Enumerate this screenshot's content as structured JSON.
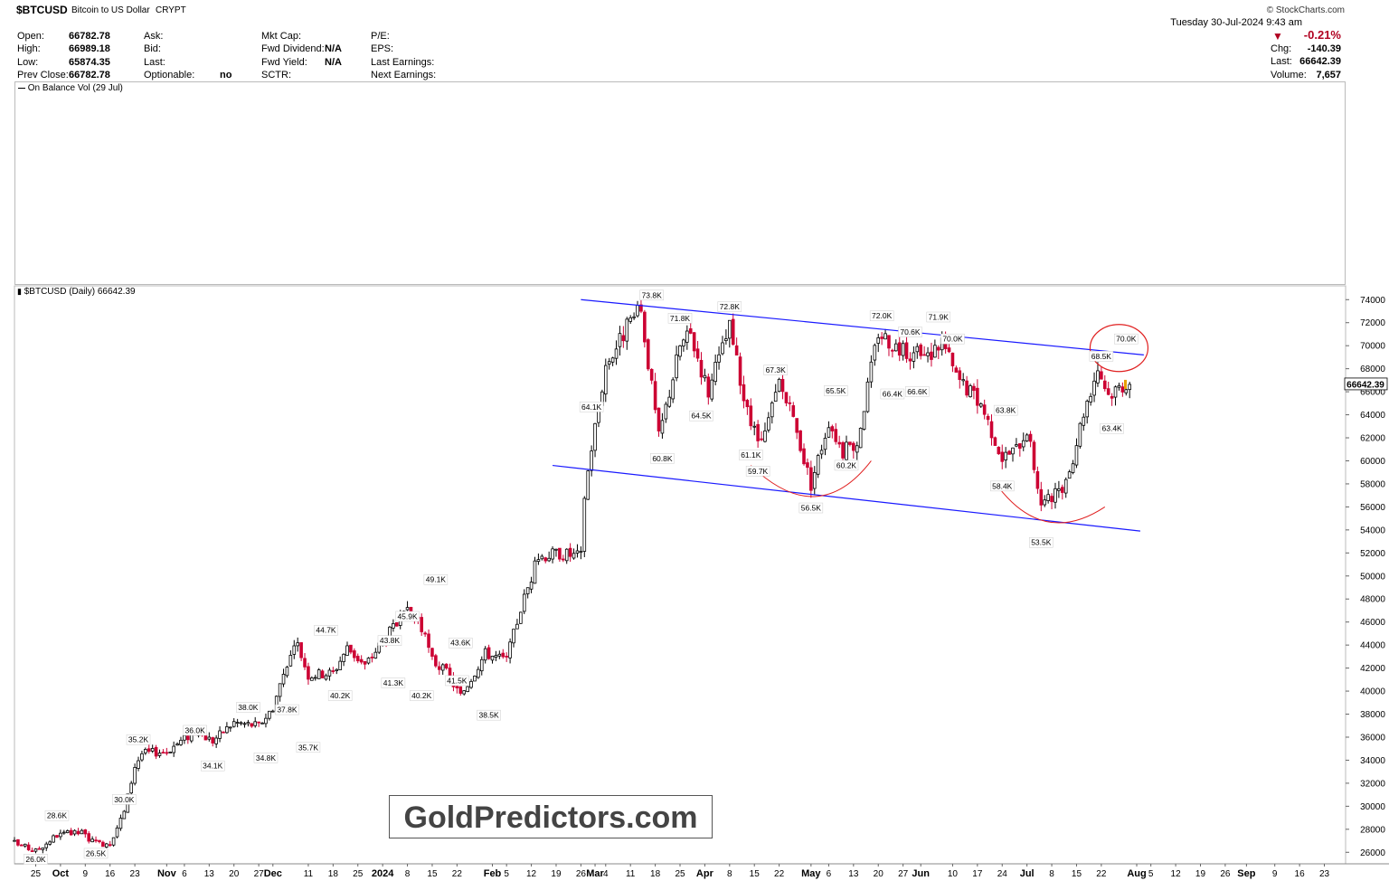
{
  "header": {
    "symbol": "$BTCUSD",
    "name": "Bitcoin to US Dollar",
    "exchange": "CRYPT",
    "source": "© StockCharts.com",
    "date": "Tuesday  30-Jul-2024  9:43 am",
    "pct_change": "-0.21%",
    "stats_left": [
      {
        "label": "Open:",
        "value": "66782.78"
      },
      {
        "label": "High:",
        "value": "66989.18"
      },
      {
        "label": "Low:",
        "value": "65874.35"
      },
      {
        "label": "Prev Close:",
        "value": "66782.78"
      }
    ],
    "stats_col2": [
      {
        "label": "Ask:",
        "value": ""
      },
      {
        "label": "Bid:",
        "value": ""
      },
      {
        "label": "Last:",
        "value": ""
      },
      {
        "label": "Optionable:",
        "value": "no"
      }
    ],
    "stats_col3": [
      {
        "label": "Mkt Cap:",
        "value": ""
      },
      {
        "label": "Fwd Dividend:",
        "value": "N/A"
      },
      {
        "label": "Fwd Yield:",
        "value": "N/A"
      },
      {
        "label": "SCTR:",
        "value": ""
      }
    ],
    "stats_col4": [
      {
        "label": "P/E:"
      },
      {
        "label": "EPS:"
      },
      {
        "label": "Last Earnings:"
      },
      {
        "label": "Next Earnings:"
      }
    ],
    "stats_right": [
      {
        "label": "Chg:",
        "value": "-140.39"
      },
      {
        "label": "Last:",
        "value": "66642.39"
      },
      {
        "label": "Volume:",
        "value": "7,657"
      }
    ]
  },
  "indicator_panel": {
    "label": "On Balance Vol (29 Jul)"
  },
  "price_panel": {
    "label": "$BTCUSD (Daily) 66642.39",
    "last_price_tag": "66642.39"
  },
  "watermark": "GoldPredictors.com",
  "colors": {
    "up": "#000000",
    "down": "#cc0033",
    "channel": "#1a1aff",
    "annotation": "#e02020",
    "last_tag": "#e8a000"
  },
  "chart_data": {
    "type": "candlestick",
    "title": "$BTCUSD (Daily) 66642.39",
    "y_axis": {
      "ticks": [
        26000,
        28000,
        30000,
        32000,
        34000,
        36000,
        38000,
        40000,
        42000,
        44000,
        46000,
        48000,
        50000,
        52000,
        54000,
        56000,
        58000,
        60000,
        62000,
        64000,
        66000,
        68000,
        70000,
        72000,
        74000
      ],
      "tick_labels": [
        "26000",
        "28000",
        "30000",
        "32000",
        "34000",
        "36000",
        "38000",
        "40000",
        "42000",
        "44000",
        "46000",
        "48000",
        "50000",
        "52000",
        "54000",
        "56000",
        "58000",
        "60000",
        "62000",
        "64000",
        "66000",
        "68000",
        "70000",
        "72000",
        "74000"
      ],
      "range": [
        25000,
        75200
      ]
    },
    "x_axis": {
      "range": [
        "2023-09-19",
        "2024-09-29"
      ],
      "ticks": [
        {
          "date": "2023-09-25",
          "label": "25"
        },
        {
          "date": "2023-10-02",
          "label": "Oct"
        },
        {
          "date": "2023-10-09",
          "label": "9"
        },
        {
          "date": "2023-10-16",
          "label": "16"
        },
        {
          "date": "2023-10-23",
          "label": "23"
        },
        {
          "date": "2023-11-01",
          "label": "Nov"
        },
        {
          "date": "2023-11-06",
          "label": "6"
        },
        {
          "date": "2023-11-13",
          "label": "13"
        },
        {
          "date": "2023-11-20",
          "label": "20"
        },
        {
          "date": "2023-11-27",
          "label": "27"
        },
        {
          "date": "2023-12-01",
          "label": "Dec"
        },
        {
          "date": "2023-12-11",
          "label": "11"
        },
        {
          "date": "2023-12-18",
          "label": "18"
        },
        {
          "date": "2023-12-25",
          "label": "25"
        },
        {
          "date": "2024-01-01",
          "label": "2024"
        },
        {
          "date": "2024-01-08",
          "label": "8"
        },
        {
          "date": "2024-01-15",
          "label": "15"
        },
        {
          "date": "2024-01-22",
          "label": "22"
        },
        {
          "date": "2024-02-01",
          "label": "Feb"
        },
        {
          "date": "2024-02-05",
          "label": "5"
        },
        {
          "date": "2024-02-12",
          "label": "12"
        },
        {
          "date": "2024-02-19",
          "label": "19"
        },
        {
          "date": "2024-02-26",
          "label": "26"
        },
        {
          "date": "2024-03-01",
          "label": "Mar"
        },
        {
          "date": "2024-03-04",
          "label": "4"
        },
        {
          "date": "2024-03-11",
          "label": "11"
        },
        {
          "date": "2024-03-18",
          "label": "18"
        },
        {
          "date": "2024-03-25",
          "label": "25"
        },
        {
          "date": "2024-04-01",
          "label": "Apr"
        },
        {
          "date": "2024-04-08",
          "label": "8"
        },
        {
          "date": "2024-04-15",
          "label": "15"
        },
        {
          "date": "2024-04-22",
          "label": "22"
        },
        {
          "date": "2024-05-01",
          "label": "May"
        },
        {
          "date": "2024-05-06",
          "label": "6"
        },
        {
          "date": "2024-05-13",
          "label": "13"
        },
        {
          "date": "2024-05-20",
          "label": "20"
        },
        {
          "date": "2024-05-27",
          "label": "27"
        },
        {
          "date": "2024-06-01",
          "label": "Jun"
        },
        {
          "date": "2024-06-10",
          "label": "10"
        },
        {
          "date": "2024-06-17",
          "label": "17"
        },
        {
          "date": "2024-06-24",
          "label": "24"
        },
        {
          "date": "2024-07-01",
          "label": "Jul"
        },
        {
          "date": "2024-07-08",
          "label": "8"
        },
        {
          "date": "2024-07-15",
          "label": "15"
        },
        {
          "date": "2024-07-22",
          "label": "22"
        },
        {
          "date": "2024-08-01",
          "label": "Aug"
        },
        {
          "date": "2024-08-05",
          "label": "5"
        },
        {
          "date": "2024-08-12",
          "label": "12"
        },
        {
          "date": "2024-08-19",
          "label": "19"
        },
        {
          "date": "2024-08-26",
          "label": "26"
        },
        {
          "date": "2024-09-01",
          "label": "Sep"
        },
        {
          "date": "2024-09-09",
          "label": "9"
        },
        {
          "date": "2024-09-16",
          "label": "16"
        },
        {
          "date": "2024-09-23",
          "label": "23"
        }
      ]
    },
    "close_path": [
      [
        "2023-09-19",
        26800
      ],
      [
        "2023-09-25",
        26100
      ],
      [
        "2023-10-01",
        27500
      ],
      [
        "2023-10-08",
        27700
      ],
      [
        "2023-10-12",
        26700
      ],
      [
        "2023-10-16",
        26900
      ],
      [
        "2023-10-20",
        29500
      ],
      [
        "2023-10-23",
        33500
      ],
      [
        "2023-10-25",
        34600
      ],
      [
        "2023-11-01",
        34800
      ],
      [
        "2023-11-09",
        36500
      ],
      [
        "2023-11-14",
        35700
      ],
      [
        "2023-11-20",
        37300
      ],
      [
        "2023-11-27",
        37000
      ],
      [
        "2023-12-01",
        38600
      ],
      [
        "2023-12-05",
        42500
      ],
      [
        "2023-12-08",
        44000
      ],
      [
        "2023-12-11",
        41400
      ],
      [
        "2023-12-18",
        41600
      ],
      [
        "2023-12-22",
        43800
      ],
      [
        "2023-12-27",
        42200
      ],
      [
        "2024-01-02",
        44800
      ],
      [
        "2024-01-08",
        46800
      ],
      [
        "2024-01-11",
        46300
      ],
      [
        "2024-01-15",
        42700
      ],
      [
        "2024-01-19",
        41600
      ],
      [
        "2024-01-23",
        39600
      ],
      [
        "2024-01-30",
        43300
      ],
      [
        "2024-02-05",
        42700
      ],
      [
        "2024-02-09",
        47200
      ],
      [
        "2024-02-14",
        51700
      ],
      [
        "2024-02-20",
        52000
      ],
      [
        "2024-02-26",
        51700
      ],
      [
        "2024-02-27",
        57000
      ],
      [
        "2024-02-29",
        61200
      ],
      [
        "2024-03-04",
        68300
      ],
      [
        "2024-03-11",
        72100
      ],
      [
        "2024-03-14",
        73000
      ],
      [
        "2024-03-19",
        62000
      ],
      [
        "2024-03-25",
        70000
      ],
      [
        "2024-03-28",
        71000
      ],
      [
        "2024-04-02",
        66000
      ],
      [
        "2024-04-08",
        71600
      ],
      [
        "2024-04-13",
        64000
      ],
      [
        "2024-04-17",
        61200
      ],
      [
        "2024-04-22",
        66800
      ],
      [
        "2024-04-26",
        63500
      ],
      [
        "2024-05-01",
        58000
      ],
      [
        "2024-05-06",
        63500
      ],
      [
        "2024-05-10",
        60800
      ],
      [
        "2024-05-14",
        61600
      ],
      [
        "2024-05-20",
        71200
      ],
      [
        "2024-05-27",
        69500
      ],
      [
        "2024-06-03",
        69000
      ],
      [
        "2024-06-07",
        70500
      ],
      [
        "2024-06-11",
        67300
      ],
      [
        "2024-06-18",
        65000
      ],
      [
        "2024-06-24",
        60300
      ],
      [
        "2024-06-28",
        61000
      ],
      [
        "2024-07-01",
        62800
      ],
      [
        "2024-07-05",
        56300
      ],
      [
        "2024-07-08",
        56700
      ],
      [
        "2024-07-12",
        57800
      ],
      [
        "2024-07-17",
        64300
      ],
      [
        "2024-07-21",
        68100
      ],
      [
        "2024-07-24",
        65800
      ],
      [
        "2024-07-29",
        66800
      ],
      [
        "2024-07-30",
        66642
      ]
    ],
    "annotations": [
      {
        "label": "26.0K",
        "date": "2023-09-25",
        "price": 26000,
        "pos": "below"
      },
      {
        "label": "28.6K",
        "date": "2023-10-01",
        "price": 28600,
        "pos": "above"
      },
      {
        "label": "26.5K",
        "date": "2023-10-12",
        "price": 26500,
        "pos": "below"
      },
      {
        "label": "30.0K",
        "date": "2023-10-20",
        "price": 30000,
        "pos": "above"
      },
      {
        "label": "35.2K",
        "date": "2023-10-24",
        "price": 35200,
        "pos": "above"
      },
      {
        "label": "36.0K",
        "date": "2023-11-09",
        "price": 36000,
        "pos": "above"
      },
      {
        "label": "34.1K",
        "date": "2023-11-14",
        "price": 34100,
        "pos": "below"
      },
      {
        "label": "38.0K",
        "date": "2023-11-24",
        "price": 38000,
        "pos": "above"
      },
      {
        "label": "34.8K",
        "date": "2023-11-29",
        "price": 34800,
        "pos": "below"
      },
      {
        "label": "37.8K",
        "date": "2023-12-05",
        "price": 37800,
        "pos": "above"
      },
      {
        "label": "35.7K",
        "date": "2023-12-11",
        "price": 35700,
        "pos": "below"
      },
      {
        "label": "44.7K",
        "date": "2023-12-16",
        "price": 44700,
        "pos": "above"
      },
      {
        "label": "40.2K",
        "date": "2023-12-20",
        "price": 40200,
        "pos": "below"
      },
      {
        "label": "43.8K",
        "date": "2024-01-03",
        "price": 43800,
        "pos": "above"
      },
      {
        "label": "41.3K",
        "date": "2024-01-04",
        "price": 41300,
        "pos": "below"
      },
      {
        "label": "45.9K",
        "date": "2024-01-08",
        "price": 45900,
        "pos": "above"
      },
      {
        "label": "40.2K",
        "date": "2024-01-12",
        "price": 40200,
        "pos": "below"
      },
      {
        "label": "49.1K",
        "date": "2024-01-16",
        "price": 49100,
        "pos": "above"
      },
      {
        "label": "41.5K",
        "date": "2024-01-22",
        "price": 41500,
        "pos": "below"
      },
      {
        "label": "43.6K",
        "date": "2024-01-23",
        "price": 43600,
        "pos": "above"
      },
      {
        "label": "38.5K",
        "date": "2024-01-31",
        "price": 38500,
        "pos": "below"
      },
      {
        "label": "64.1K",
        "date": "2024-02-29",
        "price": 64100,
        "pos": "above"
      },
      {
        "label": "73.8K",
        "date": "2024-03-17",
        "price": 73800,
        "pos": "above"
      },
      {
        "label": "60.8K",
        "date": "2024-03-20",
        "price": 60800,
        "pos": "below"
      },
      {
        "label": "71.8K",
        "date": "2024-03-25",
        "price": 71800,
        "pos": "above"
      },
      {
        "label": "64.5K",
        "date": "2024-03-31",
        "price": 64500,
        "pos": "below"
      },
      {
        "label": "72.8K",
        "date": "2024-04-08",
        "price": 72800,
        "pos": "above"
      },
      {
        "label": "61.1K",
        "date": "2024-04-14",
        "price": 61100,
        "pos": "below"
      },
      {
        "label": "59.7K",
        "date": "2024-04-16",
        "price": 59700,
        "pos": "below"
      },
      {
        "label": "67.3K",
        "date": "2024-04-21",
        "price": 67300,
        "pos": "above"
      },
      {
        "label": "65.5K",
        "date": "2024-05-08",
        "price": 65500,
        "pos": "above"
      },
      {
        "label": "56.5K",
        "date": "2024-05-01",
        "price": 56500,
        "pos": "below"
      },
      {
        "label": "60.2K",
        "date": "2024-05-11",
        "price": 60200,
        "pos": "below"
      },
      {
        "label": "72.0K",
        "date": "2024-05-21",
        "price": 72000,
        "pos": "above"
      },
      {
        "label": "70.6K",
        "date": "2024-05-29",
        "price": 70600,
        "pos": "above"
      },
      {
        "label": "66.4K",
        "date": "2024-05-24",
        "price": 66400,
        "pos": "below"
      },
      {
        "label": "66.6K",
        "date": "2024-05-31",
        "price": 66600,
        "pos": "below"
      },
      {
        "label": "71.9K",
        "date": "2024-06-06",
        "price": 71900,
        "pos": "above"
      },
      {
        "label": "70.0K",
        "date": "2024-06-10",
        "price": 70000,
        "pos": "above"
      },
      {
        "label": "63.8K",
        "date": "2024-06-25",
        "price": 63800,
        "pos": "above"
      },
      {
        "label": "58.4K",
        "date": "2024-06-24",
        "price": 58400,
        "pos": "below"
      },
      {
        "label": "53.5K",
        "date": "2024-07-05",
        "price": 53500,
        "pos": "below"
      },
      {
        "label": "68.5K",
        "date": "2024-07-22",
        "price": 68500,
        "pos": "above"
      },
      {
        "label": "70.0K",
        "date": "2024-07-29",
        "price": 70000,
        "pos": "above"
      },
      {
        "label": "63.4K",
        "date": "2024-07-25",
        "price": 63400,
        "pos": "below"
      }
    ],
    "trendlines": [
      {
        "name": "upper-channel",
        "from": [
          "2024-02-26",
          74000
        ],
        "to": [
          "2024-08-03",
          69200
        ]
      },
      {
        "name": "lower-channel",
        "from": [
          "2024-02-18",
          59600
        ],
        "to": [
          "2024-08-02",
          53900
        ]
      }
    ],
    "arcs": [
      {
        "name": "may-bottom-arc",
        "from": [
          "2024-04-14",
          59600
        ],
        "via": [
          "2024-05-02",
          56900
        ],
        "to": [
          "2024-05-18",
          60000
        ]
      },
      {
        "name": "july-bottom-arc",
        "from": [
          "2024-06-23",
          57700
        ],
        "via": [
          "2024-07-07",
          54700
        ],
        "to": [
          "2024-07-23",
          56000
        ]
      }
    ],
    "circle": {
      "name": "resistance-circle",
      "center": [
        "2024-07-27",
        69800
      ]
    }
  }
}
